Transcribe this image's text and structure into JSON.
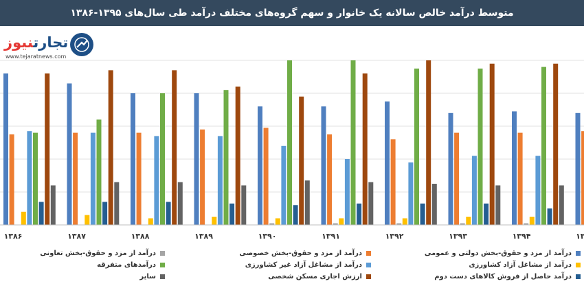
{
  "title": "متوسط درآمد خالص سالانه یک خانوار و سهم گروه‌های مختلف درآمد طی سال‌های ۱۳۹۵-۱۳۸۶",
  "logo": {
    "brand_dark": "تجارت",
    "brand_red": "نیوز",
    "url": "www.tejaratnews.com"
  },
  "chart_data": {
    "type": "bar",
    "categories": [
      "۱۳۸۶",
      "۱۳۸۷",
      "۱۳۸۸",
      "۱۳۸۹",
      "۱۳۹۰",
      "۱۳۹۱",
      "۱۳۹۲",
      "۱۳۹۳",
      "۱۳۹۴",
      "۱۳۹۵"
    ],
    "ylim": [
      0,
      100
    ],
    "grid": true,
    "legend_position": "bottom",
    "series": [
      {
        "name": "درآمد از مزد و حقوق-بخش دولتی و عمومی",
        "color": "#4f7fbf",
        "values": [
          92,
          86,
          80,
          80,
          72,
          72,
          75,
          68,
          69,
          68
        ]
      },
      {
        "name": "درآمد از مزد و حقوق-بخش خصوصی",
        "color": "#ed7d31",
        "values": [
          55,
          56,
          56,
          58,
          59,
          55,
          52,
          56,
          56,
          57
        ]
      },
      {
        "name": "درآمد از مزد و حقوق-بخش تعاونی",
        "color": "#a5a5a5",
        "values": [
          0,
          0,
          0,
          0,
          1,
          1,
          1,
          1,
          1,
          1
        ]
      },
      {
        "name": "درآمد از مشاغل آزاد کشاورزی",
        "color": "#ffc000",
        "values": [
          8,
          6,
          4,
          5,
          4,
          4,
          4,
          5,
          5,
          4
        ]
      },
      {
        "name": "درآمد از مشاغل آزاد غیر کشاورزی",
        "color": "#5b9bd5",
        "values": [
          57,
          56,
          54,
          54,
          48,
          40,
          38,
          42,
          42,
          43
        ]
      },
      {
        "name": "درآمدهای متفرقه",
        "color": "#70ad47",
        "values": [
          56,
          64,
          80,
          82,
          100,
          100,
          95,
          95,
          96,
          0
        ]
      },
      {
        "name": "درآمد حاصل از فروش کالاهای دست دوم",
        "color": "#255e91",
        "values": [
          14,
          14,
          14,
          13,
          12,
          13,
          13,
          13,
          10,
          0
        ]
      },
      {
        "name": "ارزش اجاری مسکن شخصی",
        "color": "#9e480e",
        "values": [
          92,
          94,
          94,
          84,
          78,
          92,
          100,
          98,
          98,
          0
        ]
      },
      {
        "name": "سایر",
        "color": "#636363",
        "values": [
          24,
          26,
          26,
          24,
          27,
          26,
          25,
          24,
          24,
          0
        ]
      }
    ]
  }
}
